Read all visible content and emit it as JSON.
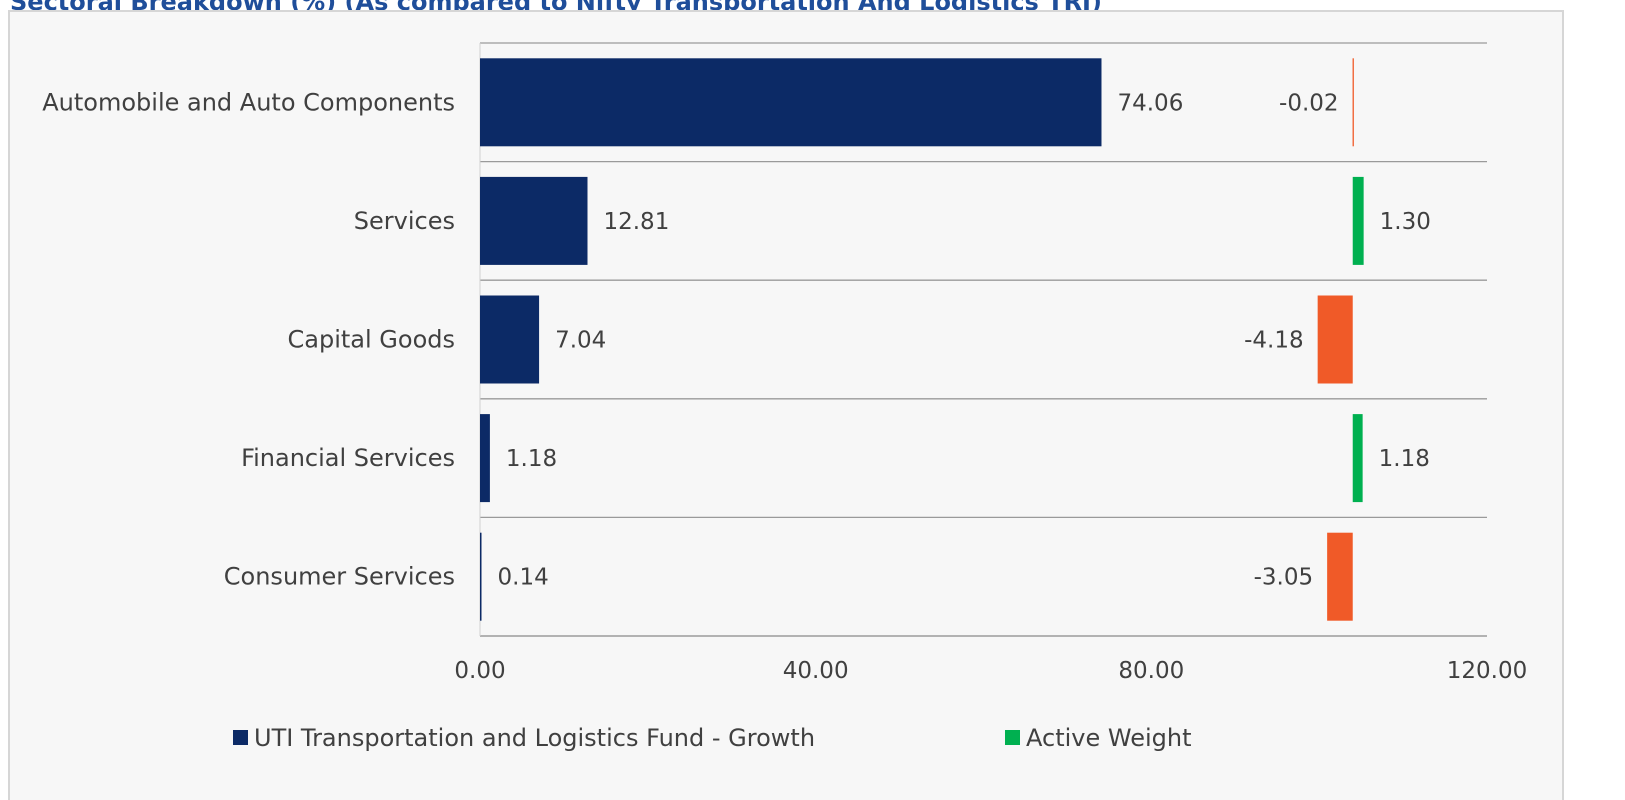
{
  "header": {
    "title": "Sectoral Breakdown (%) (As compared to Nifty Transportation And Logistics TRI)"
  },
  "chart_data": {
    "type": "bar",
    "orientation": "horizontal",
    "categories": [
      "Automobile and Auto Components",
      "Services",
      "Capital Goods",
      "Financial Services",
      "Consumer Services"
    ],
    "series": [
      {
        "name": "UTI Transportation and Logistics Fund - Growth",
        "values": [
          74.06,
          12.81,
          7.04,
          1.18,
          0.14
        ],
        "labels": [
          "74.06",
          "12.81",
          "7.04",
          "1.18",
          "0.14"
        ],
        "color": "#0c2a66"
      },
      {
        "name": "Active Weight",
        "values": [
          -0.02,
          1.3,
          -4.18,
          1.18,
          -3.05
        ],
        "labels": [
          "-0.02",
          "1.30",
          "-4.18",
          "1.18",
          "-3.05"
        ],
        "color_positive": "#00b050",
        "color_negative": "#f05a28",
        "baseline": 104
      }
    ],
    "xlim": [
      0,
      120
    ],
    "xticks": [
      0,
      40,
      80,
      120
    ],
    "xtick_labels": [
      "0.00",
      "40.00",
      "80.00",
      "120.00"
    ],
    "xlabel": "",
    "ylabel": "",
    "grid": "horizontal separators between categories",
    "legend_placement": "bottom"
  }
}
